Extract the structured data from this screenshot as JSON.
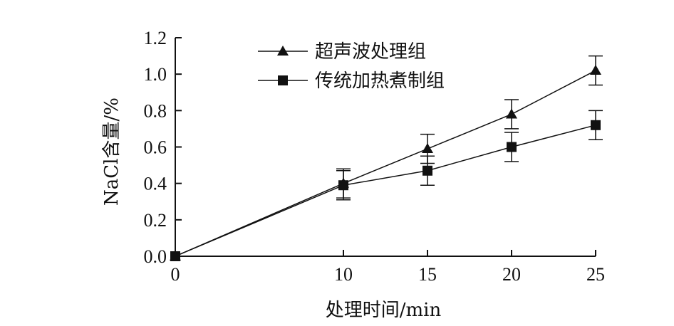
{
  "chart_data": {
    "type": "line",
    "xlabel": "处理时间/min",
    "ylabel": "NaCl含量/%",
    "xlim": [
      0,
      25
    ],
    "ylim": [
      0,
      1.2
    ],
    "x_ticks": [
      0,
      10,
      15,
      20,
      25
    ],
    "x_tick_labels": [
      "0",
      "10",
      "15",
      "20",
      "25"
    ],
    "y_ticks": [
      0,
      0.2,
      0.4,
      0.6,
      0.8,
      1.0,
      1.2
    ],
    "y_tick_labels": [
      "0.0",
      "0.2",
      "0.4",
      "0.6",
      "0.8",
      "1.0",
      "1.2"
    ],
    "grid": false,
    "legend_position": "top-center",
    "series": [
      {
        "name": "超声波处理组",
        "marker": "triangle",
        "color": "#111111",
        "x": [
          0,
          10,
          15,
          20,
          25
        ],
        "y": [
          0,
          0.4,
          0.59,
          0.78,
          1.02
        ],
        "error": [
          0,
          0.08,
          0.08,
          0.08,
          0.08
        ]
      },
      {
        "name": "传统加热煮制组",
        "marker": "square",
        "color": "#111111",
        "x": [
          0,
          10,
          15,
          20,
          25
        ],
        "y": [
          0,
          0.39,
          0.47,
          0.6,
          0.72
        ],
        "error": [
          0,
          0.08,
          0.08,
          0.08,
          0.08
        ]
      }
    ]
  }
}
